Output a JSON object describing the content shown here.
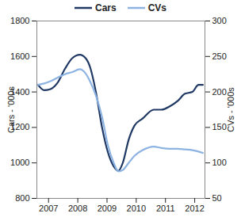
{
  "chart_data": {
    "type": "line",
    "x": [
      2006.64,
      2006.85,
      2007.05,
      2007.3,
      2007.56,
      2007.81,
      2008.07,
      2008.27,
      2008.42,
      2008.62,
      2008.83,
      2009.03,
      2009.23,
      2009.39,
      2009.54,
      2009.74,
      2009.94,
      2010.22,
      2010.6,
      2010.86,
      2011.16,
      2011.42,
      2011.67,
      2011.92,
      2012.13,
      2012.28
    ],
    "series": [
      {
        "name": "Cars",
        "color": "#1f3864",
        "values": [
          1440,
          1410,
          1415,
          1450,
          1530,
          1590,
          1610,
          1590,
          1540,
          1400,
          1200,
          1060,
          980,
          955,
          1000,
          1130,
          1210,
          1250,
          1300,
          1300,
          1320,
          1350,
          1390,
          1400,
          1440,
          1440
        ]
      },
      {
        "name": "CVs",
        "color": "#8db3e2",
        "axis": "y2",
        "values": [
          210,
          212,
          215,
          220,
          225,
          228,
          232,
          226,
          215,
          195,
          165,
          125,
          100,
          88,
          90,
          100,
          110,
          118,
          123,
          121,
          120,
          120,
          119,
          118,
          116,
          114
        ]
      }
    ],
    "ylabel": "Cars - '000s",
    "y2label": "CVs - '000s",
    "xlim": [
      2006.6,
      2012.35
    ],
    "xticks": [
      2007,
      2008,
      2009,
      2010,
      2011,
      2012
    ],
    "ylim": [
      800,
      1800
    ],
    "yticks": [
      800,
      1000,
      1200,
      1400,
      1600,
      1800
    ],
    "y2lim": [
      50,
      300
    ],
    "y2ticks": [
      50,
      100,
      150,
      200,
      250,
      300
    ],
    "legend": "top"
  }
}
